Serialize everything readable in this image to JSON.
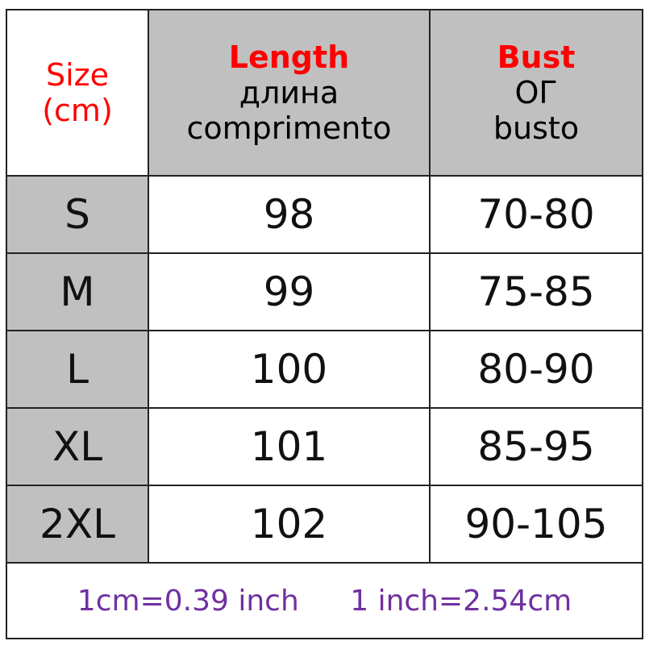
{
  "header": {
    "size": [
      "Size",
      "(cm)"
    ],
    "length": {
      "title": "Length",
      "ru": "длина",
      "pt": "comprimento"
    },
    "bust": {
      "title": "Bust",
      "ru": "ОГ",
      "pt": "busto"
    }
  },
  "rows": [
    {
      "size": "S",
      "length": "98",
      "bust": "70-80"
    },
    {
      "size": "M",
      "length": "99",
      "bust": "75-85"
    },
    {
      "size": "L",
      "length": "100",
      "bust": "80-90"
    },
    {
      "size": "XL",
      "length": "101",
      "bust": "85-95"
    },
    {
      "size": "2XL",
      "length": "102",
      "bust": "90-105"
    }
  ],
  "footer": {
    "cm_to_inch": "1cm=0.39 inch",
    "inch_to_cm": "1 inch=2.54cm"
  },
  "colors": {
    "header_text": "#ff0000",
    "footer_text": "#7030a0",
    "shade": "#c0c0c0"
  }
}
